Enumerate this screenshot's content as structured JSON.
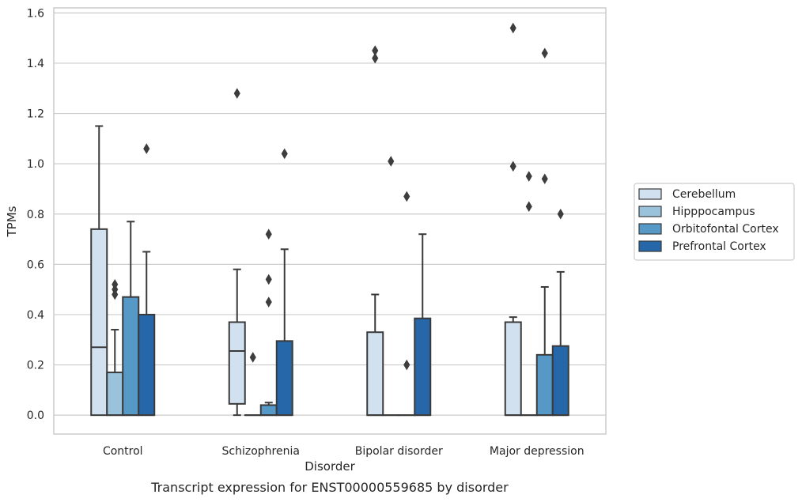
{
  "caption": "Transcript expression for ENST00000559685 by disorder",
  "chart_data": {
    "type": "box",
    "title": "",
    "xlabel": "Disorder",
    "ylabel": "TPMs",
    "ylim": [
      -0.075,
      1.62
    ],
    "yticks": [
      0.0,
      0.2,
      0.4,
      0.6,
      0.8,
      1.0,
      1.2,
      1.4,
      1.6
    ],
    "ytick_labels": [
      "0.0",
      "0.2",
      "0.4",
      "0.6",
      "0.8",
      "1.0",
      "1.2",
      "1.4",
      "1.6"
    ],
    "grid": "horizontal",
    "legend_position": "right",
    "categories": [
      "Control",
      "Schizophrenia",
      "Bipolar disorder",
      "Major depression"
    ],
    "series": [
      {
        "name": "Cerebellum",
        "color": "#d2e1f0",
        "boxes": [
          {
            "q1": 0.0,
            "median": 0.27,
            "q3": 0.74,
            "whislo": 0.0,
            "whishi": 1.15,
            "fliers": []
          },
          {
            "q1": 0.045,
            "median": 0.255,
            "q3": 0.37,
            "whislo": 0.0,
            "whishi": 0.58,
            "fliers": [
              1.28
            ]
          },
          {
            "q1": 0.0,
            "median": 0.0,
            "q3": 0.33,
            "whislo": 0.0,
            "whishi": 0.48,
            "fliers": [
              1.42,
              1.45
            ]
          },
          {
            "q1": 0.0,
            "median": 0.0,
            "q3": 0.37,
            "whislo": 0.0,
            "whishi": 0.39,
            "fliers": [
              0.99,
              1.54
            ]
          }
        ]
      },
      {
        "name": "Hipppocampus",
        "color": "#9ac2db",
        "boxes": [
          {
            "q1": 0.0,
            "median": 0.0,
            "q3": 0.17,
            "whislo": 0.0,
            "whishi": 0.34,
            "fliers": [
              0.48,
              0.5,
              0.52
            ]
          },
          {
            "q1": 0.0,
            "median": 0.0,
            "q3": 0.0,
            "whislo": 0.0,
            "whishi": 0.0,
            "fliers": [
              0.23
            ]
          },
          {
            "q1": 0.0,
            "median": 0.0,
            "q3": 0.0,
            "whislo": 0.0,
            "whishi": 0.0,
            "fliers": [
              1.01
            ]
          },
          {
            "q1": 0.0,
            "median": 0.0,
            "q3": 0.0,
            "whislo": 0.0,
            "whishi": 0.0,
            "fliers": [
              0.83,
              0.95
            ]
          }
        ]
      },
      {
        "name": "Orbitofontal Cortex",
        "color": "#5698c6",
        "boxes": [
          {
            "q1": 0.0,
            "median": 0.0,
            "q3": 0.47,
            "whislo": 0.0,
            "whishi": 0.77,
            "fliers": []
          },
          {
            "q1": 0.0,
            "median": 0.0,
            "q3": 0.04,
            "whislo": 0.0,
            "whishi": 0.05,
            "fliers": [
              0.45,
              0.54,
              0.72
            ]
          },
          {
            "q1": 0.0,
            "median": 0.0,
            "q3": 0.0,
            "whislo": 0.0,
            "whishi": 0.0,
            "fliers": [
              0.2,
              0.87
            ]
          },
          {
            "q1": 0.0,
            "median": 0.0,
            "q3": 0.24,
            "whislo": 0.0,
            "whishi": 0.51,
            "fliers": [
              0.94,
              1.44
            ]
          }
        ]
      },
      {
        "name": "Prefrontal Cortex",
        "color": "#2567a8",
        "boxes": [
          {
            "q1": 0.0,
            "median": 0.0,
            "q3": 0.4,
            "whislo": 0.0,
            "whishi": 0.65,
            "fliers": [
              1.06
            ]
          },
          {
            "q1": 0.0,
            "median": 0.0,
            "q3": 0.295,
            "whislo": 0.0,
            "whishi": 0.66,
            "fliers": [
              1.04
            ]
          },
          {
            "q1": 0.0,
            "median": 0.0,
            "q3": 0.385,
            "whislo": 0.0,
            "whishi": 0.72,
            "fliers": []
          },
          {
            "q1": 0.0,
            "median": 0.0,
            "q3": 0.275,
            "whislo": 0.0,
            "whishi": 0.57,
            "fliers": [
              0.8
            ]
          }
        ]
      }
    ]
  }
}
